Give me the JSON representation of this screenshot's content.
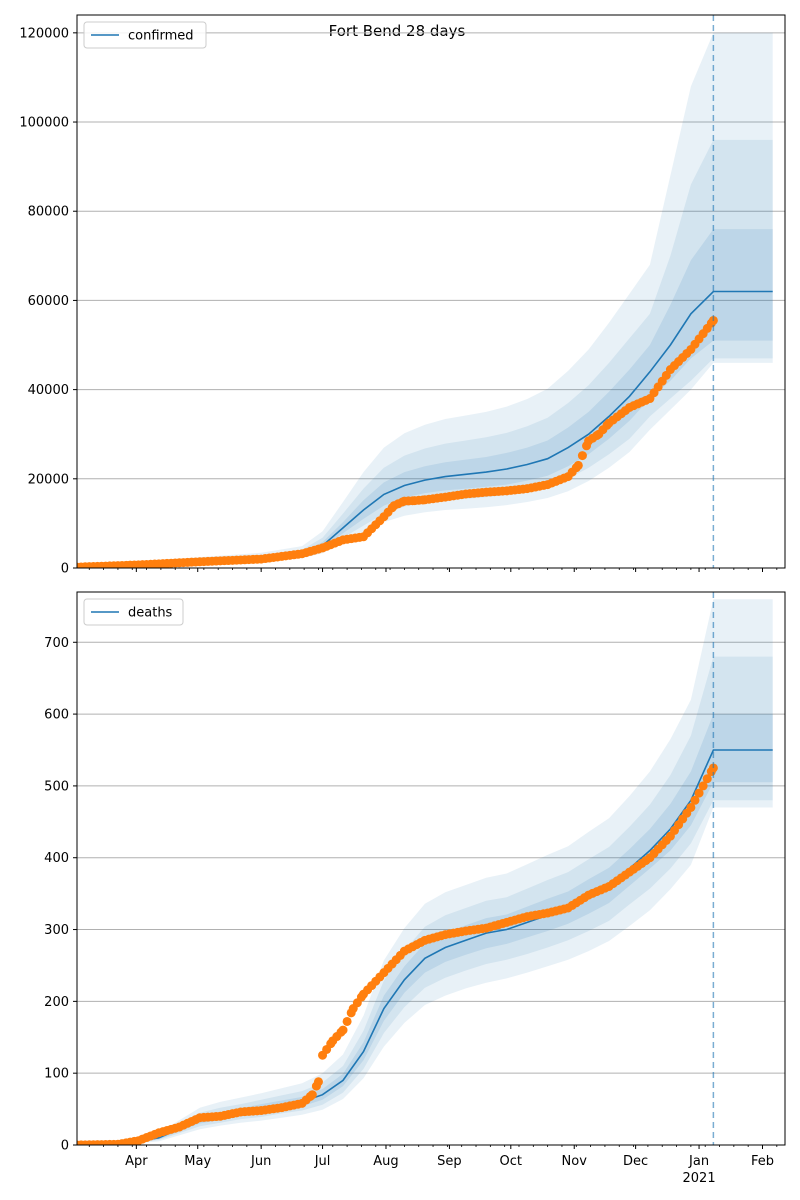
{
  "figure": {
    "title": "Fort Bend 28 days"
  },
  "chart_data": [
    {
      "type": "line",
      "name": "confirmed-panel",
      "legend": {
        "label": "confirmed",
        "placement": "top-left"
      },
      "ylim": [
        0,
        124000
      ],
      "yticks": [
        0,
        20000,
        40000,
        60000,
        80000,
        100000,
        120000
      ],
      "grid": "horizontal",
      "forecast_start_day": 311,
      "colors": {
        "model": "#1f77b4",
        "observed": "#ff7f0e",
        "band": "#1f77b4"
      },
      "x_days": [
        0,
        30,
        60,
        90,
        110,
        120,
        130,
        140,
        150,
        160,
        170,
        180,
        190,
        200,
        210,
        220,
        230,
        240,
        250,
        260,
        270,
        280,
        290,
        300,
        311,
        320,
        330,
        340
      ],
      "model": [
        300,
        800,
        1500,
        2100,
        3200,
        5000,
        9000,
        13000,
        16500,
        18500,
        19700,
        20500,
        21000,
        21500,
        22200,
        23200,
        24500,
        27000,
        30000,
        34000,
        38500,
        44000,
        50000,
        57000,
        62000,
        62000,
        62000,
        62000
      ],
      "band_inner": {
        "lower": [
          250,
          700,
          1300,
          1900,
          2900,
          4400,
          7800,
          11000,
          14000,
          15800,
          16800,
          17400,
          17800,
          18200,
          18700,
          19600,
          20700,
          22800,
          25500,
          29000,
          33000,
          38000,
          42000,
          47000,
          51000,
          51000,
          51000,
          51000
        ],
        "upper": [
          350,
          950,
          1750,
          2400,
          3600,
          5800,
          10300,
          15200,
          19200,
          21500,
          22800,
          23700,
          24300,
          24900,
          25800,
          27000,
          28600,
          31500,
          35000,
          39500,
          44500,
          50000,
          59000,
          69000,
          76000,
          76000,
          76000,
          76000
        ]
      },
      "band_mid": {
        "lower": [
          220,
          620,
          1150,
          1700,
          2600,
          3900,
          6800,
          9500,
          12200,
          13800,
          14700,
          15200,
          15500,
          15900,
          16400,
          17200,
          18200,
          20000,
          22500,
          25500,
          29000,
          34000,
          38000,
          42000,
          47000,
          47000,
          47000,
          47000
        ],
        "upper": [
          400,
          1100,
          2050,
          2800,
          4100,
          6800,
          12200,
          17800,
          22500,
          25200,
          26800,
          27900,
          28600,
          29300,
          30300,
          31800,
          33700,
          37000,
          41000,
          46000,
          51500,
          57000,
          70000,
          86000,
          96000,
          96000,
          96000,
          96000
        ]
      },
      "band_outer": {
        "lower": [
          180,
          520,
          950,
          1450,
          2200,
          3300,
          5700,
          8000,
          10300,
          11700,
          12500,
          13000,
          13300,
          13600,
          14100,
          14800,
          15700,
          17200,
          19500,
          22500,
          26000,
          31000,
          35500,
          40000,
          46000,
          46000,
          46000,
          46000
        ],
        "upper": [
          480,
          1300,
          2450,
          3400,
          4900,
          8200,
          14800,
          21500,
          27000,
          30200,
          32100,
          33400,
          34200,
          35000,
          36200,
          37900,
          40200,
          44200,
          49000,
          55000,
          61500,
          68000,
          88000,
          108000,
          120000,
          120000,
          120000,
          120000
        ]
      },
      "observed_days": [
        0,
        30,
        60,
        90,
        110,
        120,
        130,
        140,
        150,
        155,
        160,
        165,
        170,
        180,
        190,
        200,
        210,
        220,
        230,
        240,
        245,
        250,
        255,
        260,
        270,
        280,
        290,
        300,
        311
      ],
      "observed": [
        200,
        700,
        1400,
        2000,
        3200,
        4500,
        6300,
        7000,
        11500,
        14000,
        15000,
        15100,
        15300,
        15900,
        16600,
        17000,
        17300,
        17800,
        18700,
        20500,
        23000,
        28500,
        30000,
        32500,
        36000,
        38000,
        44500,
        49000,
        55500
      ]
    },
    {
      "type": "line",
      "name": "deaths-panel",
      "legend": {
        "label": "deaths",
        "placement": "top-left"
      },
      "ylim": [
        0,
        770
      ],
      "yticks": [
        0,
        100,
        200,
        300,
        400,
        500,
        600,
        700
      ],
      "grid": "horizontal",
      "forecast_start_day": 311,
      "colors": {
        "model": "#1f77b4",
        "observed": "#ff7f0e",
        "band": "#1f77b4"
      },
      "x_days": [
        0,
        20,
        40,
        60,
        70,
        80,
        90,
        100,
        110,
        120,
        130,
        140,
        150,
        160,
        170,
        180,
        190,
        200,
        210,
        220,
        230,
        240,
        250,
        260,
        270,
        280,
        290,
        300,
        311,
        320,
        330,
        340
      ],
      "model": [
        0,
        1,
        10,
        35,
        40,
        45,
        50,
        55,
        60,
        70,
        90,
        130,
        190,
        230,
        260,
        275,
        285,
        295,
        300,
        310,
        320,
        330,
        345,
        360,
        385,
        410,
        440,
        480,
        550,
        550,
        550,
        550
      ],
      "band_inner": {
        "lower": [
          0,
          0,
          8,
          30,
          35,
          40,
          44,
          49,
          54,
          63,
          82,
          118,
          173,
          212,
          240,
          255,
          265,
          274,
          280,
          289,
          298,
          308,
          322,
          337,
          361,
          385,
          410,
          445,
          505,
          505,
          505,
          505
        ],
        "upper": [
          0,
          2,
          12,
          40,
          46,
          51,
          57,
          62,
          67,
          78,
          99,
          143,
          208,
          249,
          281,
          296,
          306,
          316,
          321,
          332,
          343,
          353,
          370,
          386,
          412,
          440,
          475,
          520,
          600,
          600,
          600,
          600
        ]
      },
      "band_mid": {
        "lower": [
          0,
          0,
          7,
          26,
          31,
          36,
          39,
          44,
          48,
          56,
          73,
          106,
          156,
          192,
          219,
          233,
          243,
          252,
          258,
          266,
          275,
          285,
          298,
          312,
          335,
          357,
          385,
          420,
          480,
          480,
          480,
          480
        ],
        "upper": [
          0,
          3,
          14,
          45,
          52,
          57,
          63,
          69,
          75,
          87,
          110,
          159,
          229,
          271,
          304,
          320,
          330,
          340,
          345,
          357,
          369,
          380,
          398,
          415,
          443,
          474,
          515,
          570,
          680,
          680,
          680,
          680
        ]
      },
      "band_outer": {
        "lower": [
          0,
          0,
          5,
          22,
          27,
          31,
          34,
          38,
          42,
          49,
          64,
          93,
          137,
          170,
          195,
          208,
          218,
          226,
          232,
          240,
          249,
          258,
          270,
          284,
          305,
          327,
          356,
          390,
          470,
          470,
          470,
          470
        ],
        "upper": [
          0,
          4,
          17,
          52,
          60,
          66,
          72,
          79,
          86,
          100,
          126,
          180,
          257,
          302,
          336,
          352,
          362,
          372,
          378,
          391,
          404,
          416,
          436,
          455,
          486,
          520,
          565,
          620,
          760,
          760,
          760,
          760
        ]
      },
      "observed_days": [
        0,
        20,
        30,
        40,
        50,
        60,
        70,
        80,
        90,
        100,
        110,
        115,
        118,
        120,
        125,
        130,
        135,
        140,
        150,
        160,
        170,
        180,
        190,
        200,
        210,
        220,
        230,
        240,
        250,
        260,
        270,
        280,
        290,
        300,
        311
      ],
      "observed": [
        0,
        1,
        6,
        17,
        25,
        38,
        40,
        46,
        48,
        52,
        58,
        70,
        88,
        125,
        145,
        160,
        190,
        210,
        240,
        270,
        285,
        293,
        298,
        302,
        310,
        318,
        323,
        330,
        348,
        360,
        380,
        400,
        430,
        470,
        525
      ]
    }
  ],
  "x_axis": {
    "day0": "2020-03-03",
    "tick_labels": [
      {
        "day": 29,
        "label": "Apr"
      },
      {
        "day": 59,
        "label": "May"
      },
      {
        "day": 90,
        "label": "Jun"
      },
      {
        "day": 120,
        "label": "Jul"
      },
      {
        "day": 151,
        "label": "Aug"
      },
      {
        "day": 182,
        "label": "Sep"
      },
      {
        "day": 212,
        "label": "Oct"
      },
      {
        "day": 243,
        "label": "Nov"
      },
      {
        "day": 273,
        "label": "Dec"
      },
      {
        "day": 304,
        "label": "Jan"
      },
      {
        "day": 335,
        "label": "Feb"
      }
    ],
    "year_label": "2021",
    "xlim": [
      0,
      346
    ]
  }
}
